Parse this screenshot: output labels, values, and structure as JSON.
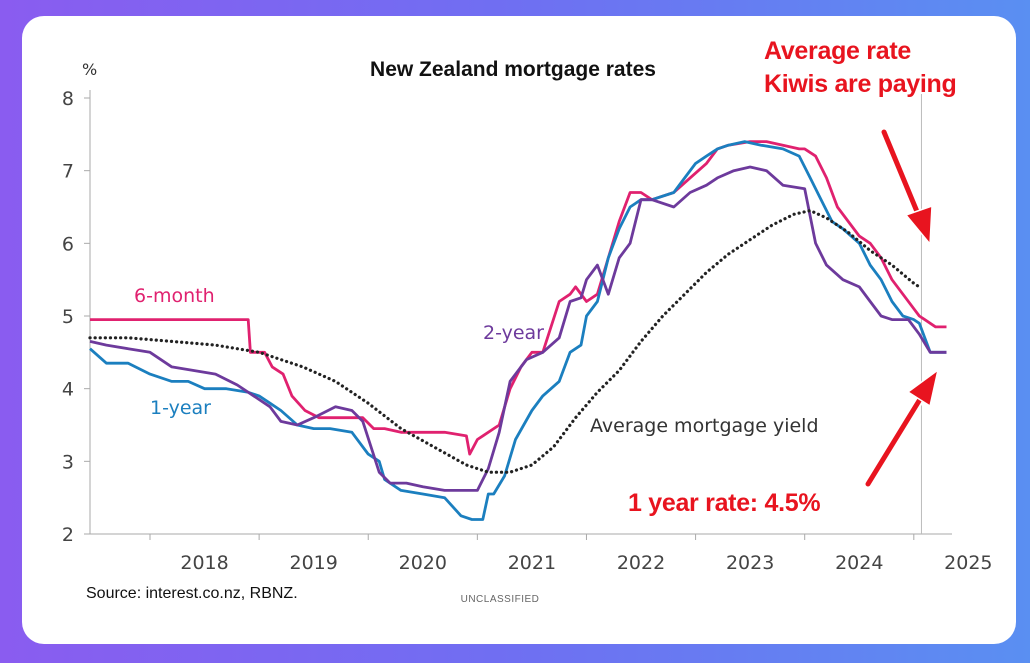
{
  "chart_data": {
    "type": "line",
    "title": "New Zealand mortgage rates",
    "ylabel": "%",
    "ylim": [
      2,
      8
    ],
    "xlim": [
      2017.45,
      2025.35
    ],
    "yticks": [
      2,
      3,
      4,
      5,
      6,
      7,
      8
    ],
    "xticks": [
      "2018",
      "2019",
      "2020",
      "2021",
      "2022",
      "2023",
      "2024",
      "2025"
    ],
    "grid": false,
    "source": "Source: interest.co.nz, RBNZ.",
    "classification": "UNCLASSIFIED",
    "series": [
      {
        "name": "6-month",
        "color": "#e0216f",
        "label_text": "6-month",
        "x": [
          2017.45,
          2018.9,
          2018.92,
          2019.05,
          2019.12,
          2019.22,
          2019.3,
          2019.42,
          2019.55,
          2019.7,
          2019.8,
          2019.95,
          2020.05,
          2020.15,
          2020.3,
          2020.5,
          2020.7,
          2020.9,
          2020.93,
          2021.0,
          2021.05,
          2021.2,
          2021.3,
          2021.4,
          2021.5,
          2021.6,
          2021.75,
          2021.85,
          2021.9,
          2022.0,
          2022.1,
          2022.2,
          2022.3,
          2022.4,
          2022.5,
          2022.6,
          2022.8,
          2022.95,
          2023.1,
          2023.2,
          2023.3,
          2023.5,
          2023.65,
          2023.8,
          2023.95,
          2024.0,
          2024.1,
          2024.2,
          2024.3,
          2024.4,
          2024.5,
          2024.6,
          2024.7,
          2024.8,
          2024.9,
          2025.0,
          2025.05,
          2025.1,
          2025.2,
          2025.3
        ],
        "y": [
          4.95,
          4.95,
          4.5,
          4.5,
          4.3,
          4.2,
          3.9,
          3.7,
          3.6,
          3.6,
          3.6,
          3.6,
          3.45,
          3.45,
          3.4,
          3.4,
          3.4,
          3.35,
          3.1,
          3.3,
          3.35,
          3.5,
          4.0,
          4.3,
          4.5,
          4.5,
          5.2,
          5.3,
          5.4,
          5.2,
          5.3,
          5.8,
          6.3,
          6.7,
          6.7,
          6.6,
          6.7,
          6.9,
          7.1,
          7.3,
          7.35,
          7.4,
          7.4,
          7.35,
          7.3,
          7.3,
          7.2,
          6.9,
          6.5,
          6.3,
          6.1,
          6.0,
          5.8,
          5.5,
          5.3,
          5.1,
          5.0,
          4.95,
          4.85,
          4.85
        ]
      },
      {
        "name": "1-year",
        "color": "#1b7fbf",
        "label_text": "1-year",
        "x": [
          2017.45,
          2017.6,
          2017.8,
          2018.0,
          2018.2,
          2018.35,
          2018.5,
          2018.7,
          2018.9,
          2019.0,
          2019.1,
          2019.2,
          2019.35,
          2019.5,
          2019.65,
          2019.85,
          2020.0,
          2020.1,
          2020.15,
          2020.3,
          2020.5,
          2020.7,
          2020.85,
          2020.95,
          2021.0,
          2021.05,
          2021.1,
          2021.15,
          2021.25,
          2021.35,
          2021.5,
          2021.6,
          2021.75,
          2021.85,
          2021.95,
          2022.0,
          2022.1,
          2022.2,
          2022.3,
          2022.4,
          2022.5,
          2022.6,
          2022.8,
          2022.9,
          2023.0,
          2023.1,
          2023.2,
          2023.3,
          2023.45,
          2023.6,
          2023.8,
          2023.95,
          2024.05,
          2024.15,
          2024.25,
          2024.35,
          2024.5,
          2024.6,
          2024.7,
          2024.8,
          2024.9,
          2025.0,
          2025.05,
          2025.15,
          2025.3
        ],
        "y": [
          4.55,
          4.35,
          4.35,
          4.2,
          4.1,
          4.1,
          4.0,
          4.0,
          3.95,
          3.9,
          3.8,
          3.7,
          3.5,
          3.45,
          3.45,
          3.4,
          3.1,
          3.0,
          2.75,
          2.6,
          2.55,
          2.5,
          2.25,
          2.2,
          2.2,
          2.2,
          2.55,
          2.55,
          2.8,
          3.3,
          3.7,
          3.9,
          4.1,
          4.5,
          4.6,
          5.0,
          5.2,
          5.8,
          6.2,
          6.5,
          6.6,
          6.6,
          6.7,
          6.9,
          7.1,
          7.2,
          7.3,
          7.35,
          7.4,
          7.35,
          7.3,
          7.2,
          6.9,
          6.6,
          6.3,
          6.2,
          6.0,
          5.7,
          5.5,
          5.2,
          5.0,
          4.95,
          4.9,
          4.5,
          4.5
        ]
      },
      {
        "name": "2-year",
        "color": "#6d3a9c",
        "label_text": "2-year",
        "x": [
          2017.45,
          2017.6,
          2017.8,
          2018.0,
          2018.2,
          2018.4,
          2018.6,
          2018.8,
          2018.95,
          2019.1,
          2019.2,
          2019.35,
          2019.5,
          2019.7,
          2019.85,
          2019.95,
          2020.1,
          2020.2,
          2020.35,
          2020.5,
          2020.7,
          2020.9,
          2021.0,
          2021.1,
          2021.2,
          2021.3,
          2021.45,
          2021.6,
          2021.75,
          2021.85,
          2021.95,
          2022.0,
          2022.1,
          2022.2,
          2022.3,
          2022.4,
          2022.5,
          2022.6,
          2022.8,
          2022.95,
          2023.1,
          2023.2,
          2023.35,
          2023.5,
          2023.65,
          2023.8,
          2024.0,
          2024.1,
          2024.2,
          2024.35,
          2024.5,
          2024.6,
          2024.7,
          2024.8,
          2024.95,
          2025.05,
          2025.15,
          2025.3
        ],
        "y": [
          4.65,
          4.6,
          4.55,
          4.5,
          4.3,
          4.25,
          4.2,
          4.05,
          3.9,
          3.75,
          3.55,
          3.5,
          3.6,
          3.75,
          3.7,
          3.55,
          2.85,
          2.7,
          2.7,
          2.65,
          2.6,
          2.6,
          2.6,
          2.9,
          3.4,
          4.1,
          4.4,
          4.5,
          4.7,
          5.2,
          5.25,
          5.5,
          5.7,
          5.3,
          5.8,
          6.0,
          6.6,
          6.6,
          6.5,
          6.7,
          6.8,
          6.9,
          7.0,
          7.05,
          7.0,
          6.8,
          6.75,
          6.0,
          5.7,
          5.5,
          5.4,
          5.2,
          5.0,
          4.95,
          4.95,
          4.75,
          4.5,
          4.5
        ]
      },
      {
        "name": "Average mortgage yield",
        "color": "#222222",
        "dashed": true,
        "label_text": "Average mortgage yield",
        "x": [
          2017.45,
          2017.8,
          2018.2,
          2018.6,
          2019.0,
          2019.4,
          2019.7,
          2020.0,
          2020.3,
          2020.6,
          2020.9,
          2021.1,
          2021.3,
          2021.5,
          2021.7,
          2021.9,
          2022.1,
          2022.3,
          2022.5,
          2022.7,
          2022.9,
          2023.1,
          2023.3,
          2023.5,
          2023.7,
          2023.9,
          2024.05,
          2024.2,
          2024.4,
          2024.6,
          2024.8,
          2025.0,
          2025.05
        ],
        "y": [
          4.7,
          4.7,
          4.65,
          4.6,
          4.5,
          4.3,
          4.1,
          3.8,
          3.45,
          3.2,
          2.95,
          2.85,
          2.85,
          2.95,
          3.2,
          3.6,
          3.95,
          4.25,
          4.65,
          5.0,
          5.3,
          5.6,
          5.85,
          6.05,
          6.25,
          6.4,
          6.45,
          6.35,
          6.15,
          5.9,
          5.7,
          5.45,
          5.4
        ]
      }
    ],
    "annotations": {
      "callout_top_line1": "Average rate",
      "callout_top_line2": "Kiwis are paying",
      "callout_bottom": "1 year rate: 4.5%"
    }
  }
}
